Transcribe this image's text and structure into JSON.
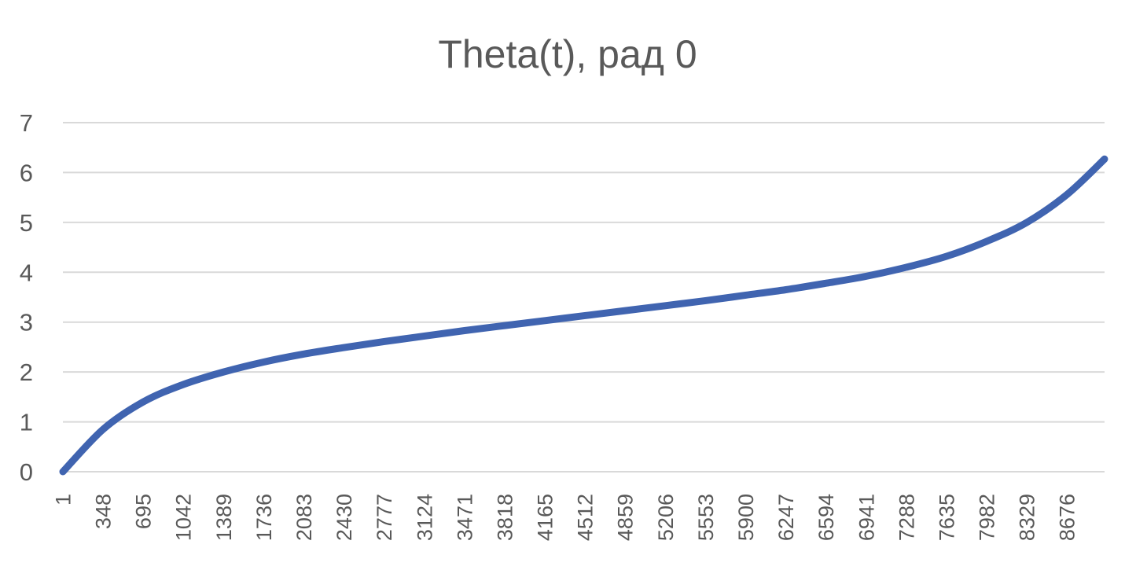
{
  "colors": {
    "series": "#4064b0",
    "grid": "#d9d9d9",
    "text": "#595959",
    "background": "#ffffff"
  },
  "chart_data": {
    "type": "line",
    "title": "Theta(t), рад 0",
    "xlabel": "",
    "ylabel": "",
    "ylim": [
      0,
      7
    ],
    "xlim": [
      1,
      9000
    ],
    "y_ticks": [
      0,
      1,
      2,
      3,
      4,
      5,
      6,
      7
    ],
    "x_tick_labels": [
      "1",
      "348",
      "695",
      "1042",
      "1389",
      "1736",
      "2083",
      "2430",
      "2777",
      "3124",
      "3471",
      "3818",
      "4165",
      "4512",
      "4859",
      "5206",
      "5553",
      "5900",
      "6247",
      "6594",
      "6941",
      "7288",
      "7635",
      "7982",
      "8329",
      "8676"
    ],
    "grid": true,
    "legend": "none",
    "series": [
      {
        "x": [
          1,
          348,
          695,
          1042,
          1389,
          1736,
          2083,
          2430,
          2777,
          3124,
          3471,
          3818,
          4165,
          4512,
          4859,
          5206,
          5553,
          5900,
          6247,
          6594,
          6941,
          7288,
          7635,
          7982,
          8329,
          8676,
          9000
        ],
        "y": [
          0.0,
          0.85,
          1.4,
          1.75,
          2.0,
          2.2,
          2.36,
          2.49,
          2.61,
          2.72,
          2.83,
          2.93,
          3.03,
          3.13,
          3.23,
          3.33,
          3.43,
          3.54,
          3.65,
          3.78,
          3.92,
          4.1,
          4.32,
          4.62,
          5.0,
          5.56,
          6.27
        ]
      }
    ]
  }
}
